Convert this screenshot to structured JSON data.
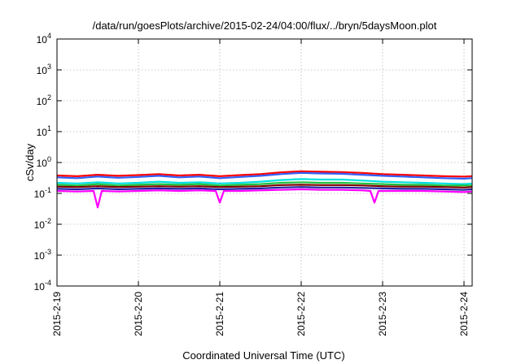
{
  "chart_data": {
    "type": "line",
    "title": "/data/run/goesPlots/archive/2015-02-24/04:00/flux/../bryn/5daysMoon.plot",
    "xlabel": "Coordinated Universal Time (UTC)",
    "ylabel": "cSv/day",
    "y_scale": "log",
    "ylim": [
      0.0001,
      10000
    ],
    "xlim": [
      0,
      5.1
    ],
    "grid": true,
    "x_ticks": [
      {
        "value": 0,
        "label": "2015-2-19"
      },
      {
        "value": 1,
        "label": "2015-2-20"
      },
      {
        "value": 2,
        "label": "2015-2-21"
      },
      {
        "value": 3,
        "label": "2015-2-22"
      },
      {
        "value": 4,
        "label": "2015-2-23"
      },
      {
        "value": 5,
        "label": "2015-2-24"
      }
    ],
    "y_ticks": [
      {
        "value": 0.0001,
        "base": "10",
        "exp": "-4"
      },
      {
        "value": 0.001,
        "base": "10",
        "exp": "-3"
      },
      {
        "value": 0.01,
        "base": "10",
        "exp": "-2"
      },
      {
        "value": 0.1,
        "base": "10",
        "exp": "-1"
      },
      {
        "value": 1,
        "base": "10",
        "exp": "0"
      },
      {
        "value": 10,
        "base": "10",
        "exp": "1"
      },
      {
        "value": 100,
        "base": "10",
        "exp": "2"
      },
      {
        "value": 1000,
        "base": "10",
        "exp": "3"
      },
      {
        "value": 10000,
        "base": "10",
        "exp": "4"
      }
    ],
    "series": [
      {
        "color": "#ff0000",
        "x": [
          0,
          0.25,
          0.5,
          0.75,
          1,
          1.25,
          1.5,
          1.75,
          2,
          2.25,
          2.5,
          2.75,
          3,
          3.25,
          3.5,
          3.75,
          4,
          4.25,
          4.5,
          4.75,
          5,
          5.1
        ],
        "y": [
          0.38,
          0.36,
          0.4,
          0.37,
          0.39,
          0.42,
          0.38,
          0.4,
          0.36,
          0.39,
          0.42,
          0.48,
          0.52,
          0.5,
          0.49,
          0.46,
          0.42,
          0.4,
          0.38,
          0.36,
          0.35,
          0.36
        ]
      },
      {
        "color": "#3060ff",
        "x": [
          0,
          0.25,
          0.5,
          0.75,
          1,
          1.25,
          1.5,
          1.75,
          2,
          2.25,
          2.5,
          2.75,
          3,
          3.25,
          3.5,
          3.75,
          4,
          4.25,
          4.5,
          4.75,
          5,
          5.1
        ],
        "y": [
          0.33,
          0.31,
          0.35,
          0.32,
          0.34,
          0.37,
          0.33,
          0.35,
          0.31,
          0.34,
          0.37,
          0.42,
          0.46,
          0.44,
          0.43,
          0.4,
          0.37,
          0.35,
          0.33,
          0.31,
          0.3,
          0.31
        ]
      },
      {
        "color": "#00e0e0",
        "x": [
          0,
          0.25,
          0.5,
          0.75,
          1,
          1.25,
          1.5,
          1.75,
          2,
          2.25,
          2.5,
          2.75,
          3,
          3.25,
          3.5,
          3.75,
          4,
          4.25,
          4.5,
          4.75,
          5,
          5.1
        ],
        "y": [
          0.22,
          0.21,
          0.23,
          0.21,
          0.22,
          0.24,
          0.22,
          0.23,
          0.21,
          0.22,
          0.24,
          0.27,
          0.29,
          0.28,
          0.28,
          0.26,
          0.24,
          0.23,
          0.22,
          0.21,
          0.2,
          0.21
        ]
      },
      {
        "color": "#20c040",
        "x": [
          0,
          0.25,
          0.5,
          0.75,
          1,
          1.25,
          1.5,
          1.75,
          2,
          2.25,
          2.5,
          2.75,
          3,
          3.25,
          3.5,
          3.75,
          4,
          4.25,
          4.5,
          4.75,
          5,
          5.1
        ],
        "y": [
          0.19,
          0.18,
          0.2,
          0.18,
          0.19,
          0.2,
          0.19,
          0.2,
          0.18,
          0.19,
          0.2,
          0.22,
          0.23,
          0.22,
          0.22,
          0.21,
          0.2,
          0.19,
          0.19,
          0.18,
          0.18,
          0.18
        ]
      },
      {
        "color": "#800000",
        "x": [
          0,
          0.25,
          0.5,
          0.75,
          1,
          1.25,
          1.5,
          1.75,
          2,
          2.25,
          2.5,
          2.75,
          3,
          3.25,
          3.5,
          3.75,
          4,
          4.25,
          4.5,
          4.75,
          5,
          5.1
        ],
        "y": [
          0.165,
          0.16,
          0.17,
          0.16,
          0.165,
          0.17,
          0.165,
          0.17,
          0.16,
          0.165,
          0.17,
          0.185,
          0.19,
          0.185,
          0.185,
          0.18,
          0.17,
          0.165,
          0.165,
          0.16,
          0.155,
          0.16
        ]
      },
      {
        "color": "#2020a0",
        "x": [
          0,
          0.25,
          0.5,
          0.75,
          1,
          1.25,
          1.5,
          1.75,
          2,
          2.25,
          2.5,
          2.75,
          3,
          3.25,
          3.5,
          3.75,
          4,
          4.25,
          4.5,
          4.75,
          5,
          5.1
        ],
        "y": [
          0.14,
          0.135,
          0.145,
          0.135,
          0.14,
          0.145,
          0.14,
          0.145,
          0.135,
          0.14,
          0.145,
          0.155,
          0.16,
          0.155,
          0.155,
          0.15,
          0.145,
          0.14,
          0.14,
          0.135,
          0.13,
          0.135
        ]
      },
      {
        "color": "#ff00ff",
        "x": [
          0,
          0.25,
          0.45,
          0.5,
          0.55,
          0.75,
          1,
          1.25,
          1.5,
          1.75,
          1.95,
          2.0,
          2.05,
          2.25,
          2.5,
          2.75,
          3,
          3.25,
          3.5,
          3.75,
          3.85,
          3.9,
          3.95,
          4.25,
          4.5,
          4.75,
          5,
          5.1
        ],
        "y": [
          0.12,
          0.115,
          0.12,
          0.035,
          0.12,
          0.115,
          0.12,
          0.125,
          0.12,
          0.125,
          0.12,
          0.05,
          0.12,
          0.12,
          0.125,
          0.13,
          0.135,
          0.13,
          0.13,
          0.125,
          0.12,
          0.05,
          0.12,
          0.12,
          0.12,
          0.115,
          0.11,
          0.115
        ]
      }
    ]
  }
}
